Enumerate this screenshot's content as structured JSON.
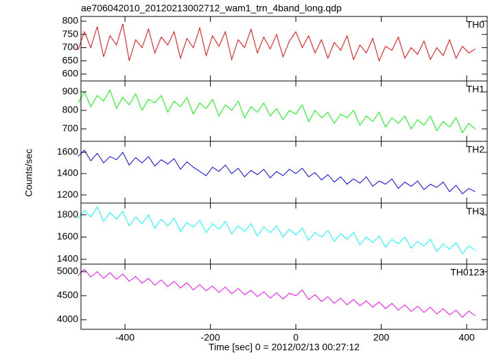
{
  "chart_data": {
    "type": "line",
    "title": "ae706042010_20120213002712_wam1_trn_4band_long.qdp",
    "xlabel": "Time [sec] 0 = 2012/02/13 00:27:12",
    "ylabel": "Counts/sec",
    "xlim": [
      -503,
      448
    ],
    "xticks": [
      -400,
      -200,
      0,
      200,
      400
    ],
    "x": [
      -510,
      -495,
      -480,
      -465,
      -450,
      -435,
      -420,
      -405,
      -390,
      -375,
      -360,
      -345,
      -330,
      -315,
      -300,
      -285,
      -270,
      -255,
      -240,
      -225,
      -210,
      -195,
      -180,
      -165,
      -150,
      -135,
      -120,
      -105,
      -90,
      -75,
      -60,
      -45,
      -30,
      -15,
      0,
      15,
      30,
      45,
      60,
      75,
      90,
      105,
      120,
      135,
      150,
      165,
      180,
      195,
      210,
      225,
      240,
      255,
      270,
      285,
      300,
      315,
      330,
      345,
      360,
      375,
      390,
      405,
      420
    ],
    "panels": [
      {
        "ylim": [
          574,
          818
        ],
        "yticks": [
          600,
          650,
          700,
          750,
          800
        ],
        "series": [
          {
            "name": "TH0",
            "color": "#ff0000",
            "values": [
              690,
              760,
              700,
              780,
              665,
              745,
              710,
              790,
              650,
              730,
              700,
              770,
              680,
              740,
              710,
              760,
              660,
              735,
              700,
              775,
              670,
              745,
              705,
              760,
              655,
              730,
              700,
              770,
              680,
              740,
              695,
              750,
              665,
              725,
              760,
              700,
              745,
              680,
              730,
              660,
              720,
              690,
              745,
              655,
              710,
              680,
              735,
              650,
              705,
              690,
              740,
              660,
              700,
              675,
              725,
              655,
              700,
              670,
              730,
              660,
              705,
              680,
              695
            ]
          }
        ]
      },
      {
        "ylim": [
          633,
          959
        ],
        "yticks": [
          700,
          800,
          900
        ],
        "series": [
          {
            "name": "TH1",
            "color": "#00ff00",
            "values": [
              840,
              900,
              820,
              880,
              850,
              910,
              810,
              870,
              830,
              890,
              800,
              860,
              840,
              880,
              790,
              850,
              820,
              870,
              780,
              840,
              810,
              860,
              770,
              830,
              800,
              850,
              760,
              820,
              790,
              840,
              770,
              810,
              750,
              800,
              780,
              830,
              740,
              800,
              760,
              790,
              730,
              780,
              760,
              800,
              720,
              770,
              740,
              790,
              710,
              760,
              730,
              770,
              700,
              750,
              720,
              770,
              690,
              740,
              710,
              760,
              680,
              730,
              700
            ]
          }
        ]
      },
      {
        "ylim": [
          1123,
          1703
        ],
        "yticks": [
          1200,
          1400,
          1600
        ],
        "series": [
          {
            "name": "TH2",
            "color": "#0000ff",
            "values": [
              1560,
              1620,
              1520,
              1590,
              1500,
              1560,
              1530,
              1600,
              1480,
              1550,
              1500,
              1560,
              1470,
              1530,
              1490,
              1540,
              1440,
              1510,
              1460,
              1420,
              1380,
              1460,
              1420,
              1480,
              1400,
              1450,
              1370,
              1430,
              1390,
              1440,
              1360,
              1420,
              1380,
              1440,
              1400,
              1450,
              1370,
              1410,
              1340,
              1390,
              1320,
              1370,
              1300,
              1350,
              1310,
              1370,
              1280,
              1330,
              1300,
              1350,
              1260,
              1320,
              1280,
              1330,
              1250,
              1300,
              1270,
              1320,
              1230,
              1290,
              1210,
              1260,
              1230
            ]
          }
        ]
      },
      {
        "ylim": [
          1357,
          1905
        ],
        "yticks": [
          1400,
          1600,
          1800
        ],
        "series": [
          {
            "name": "TH3",
            "color": "#00ffff",
            "values": [
              1760,
              1840,
              1780,
              1870,
              1740,
              1820,
              1760,
              1830,
              1700,
              1780,
              1720,
              1800,
              1680,
              1760,
              1700,
              1770,
              1650,
              1730,
              1690,
              1750,
              1640,
              1720,
              1670,
              1740,
              1630,
              1700,
              1650,
              1720,
              1610,
              1690,
              1640,
              1700,
              1600,
              1670,
              1620,
              1680,
              1570,
              1640,
              1600,
              1660,
              1560,
              1630,
              1580,
              1640,
              1530,
              1600,
              1550,
              1610,
              1510,
              1580,
              1540,
              1600,
              1500,
              1560,
              1520,
              1580,
              1470,
              1540,
              1490,
              1550,
              1450,
              1520,
              1480
            ]
          }
        ]
      },
      {
        "ylim": [
          3800,
          5157
        ],
        "yticks": [
          4000,
          4500,
          5000
        ],
        "series": [
          {
            "name": "TH0123",
            "color": "#ff00ff",
            "values": [
              4920,
              5050,
              4890,
              5000,
              4860,
              4980,
              4840,
              4950,
              4800,
              4900,
              4760,
              4860,
              4720,
              4830,
              4690,
              4800,
              4660,
              4770,
              4620,
              4730,
              4600,
              4700,
              4570,
              4680,
              4540,
              4650,
              4520,
              4610,
              4480,
              4580,
              4450,
              4560,
              4430,
              4550,
              4500,
              4620,
              4420,
              4520,
              4380,
              4480,
              4340,
              4450,
              4310,
              4420,
              4290,
              4390,
              4260,
              4370,
              4230,
              4340,
              4200,
              4310,
              4170,
              4280,
              4150,
              4260,
              4120,
              4230,
              4100,
              4200,
              4050,
              4180,
              4080
            ]
          }
        ]
      }
    ]
  }
}
